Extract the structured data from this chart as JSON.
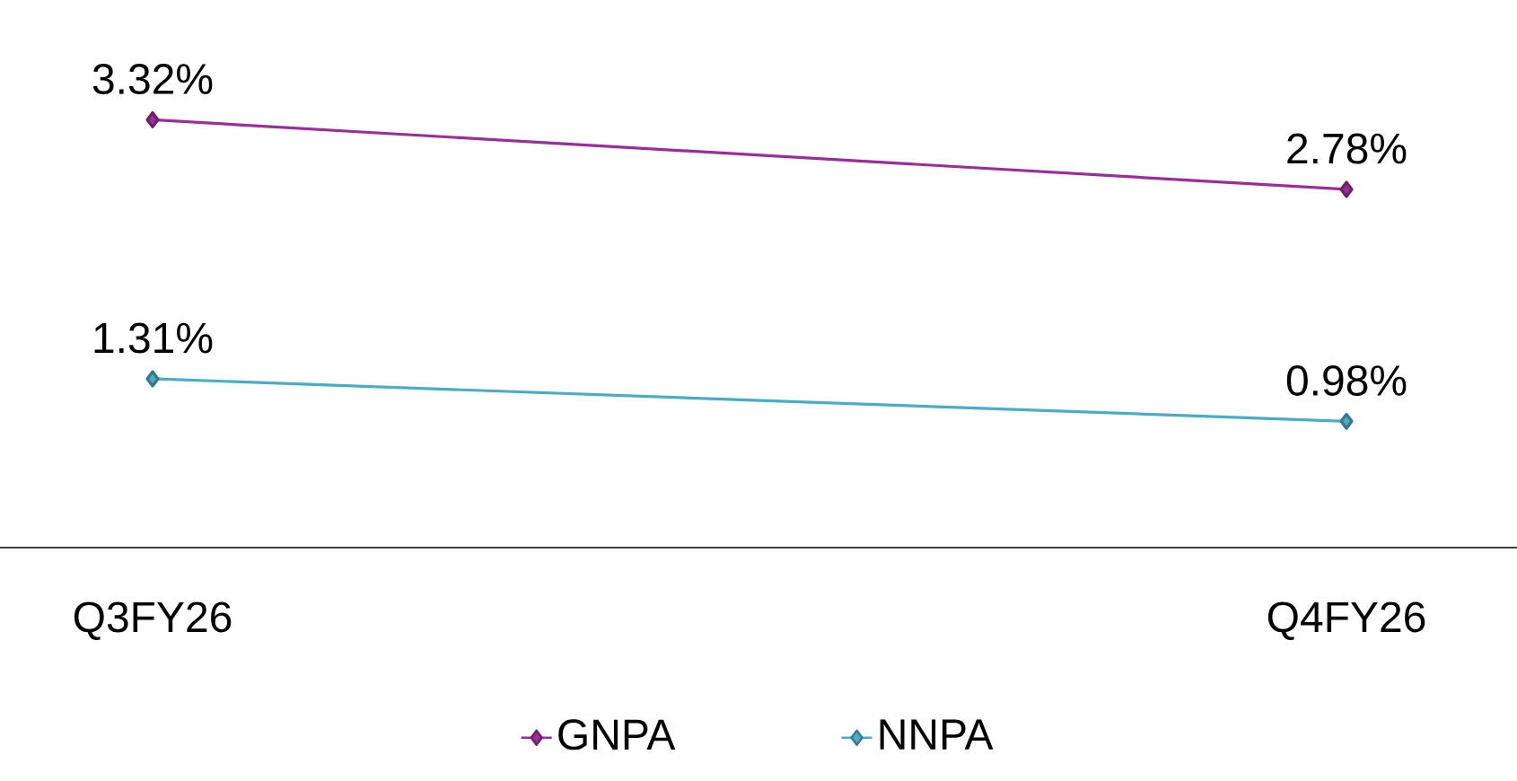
{
  "chart_data": {
    "type": "line",
    "categories": [
      "Q3FY26",
      "Q4FY26"
    ],
    "marker": "diamond",
    "line_style": "solid",
    "legend": "bottom",
    "tick_labels": "x",
    "series": [
      {
        "name": "GNPA",
        "color": "#9b2d9b",
        "values": [
          3.32,
          2.78
        ],
        "value_labels": [
          "3.32%",
          "2.78%"
        ]
      },
      {
        "name": "NNPA",
        "color": "#4bacc6",
        "values": [
          1.31,
          0.98
        ],
        "value_labels": [
          "1.31%",
          "0.98%"
        ]
      }
    ]
  }
}
